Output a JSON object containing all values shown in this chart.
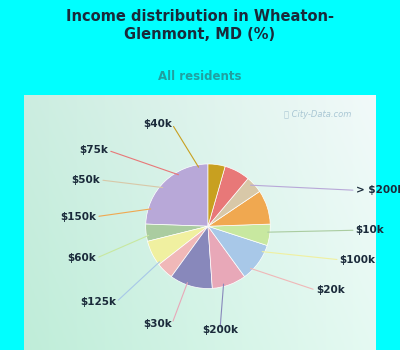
{
  "title": "Income distribution in Wheaton-\nGlenmont, MD (%)",
  "subtitle": "All residents",
  "watermark": "ⓘ City-Data.com",
  "labels": [
    "> $200k",
    "$10k",
    "$100k",
    "$20k",
    "$200k",
    "$30k",
    "$125k",
    "$60k",
    "$150k",
    "$50k",
    "$75k",
    "$40k"
  ],
  "values": [
    22,
    4,
    6,
    4,
    10,
    8,
    9,
    5,
    8,
    4,
    6,
    4
  ],
  "colors": [
    "#b8a8d8",
    "#aacca0",
    "#f0f0a0",
    "#f0b8b8",
    "#8888bb",
    "#e8a8b8",
    "#a8c8e8",
    "#c8e8a0",
    "#f0a850",
    "#d8c8a8",
    "#e87878",
    "#c8a020"
  ],
  "bg_top_color": "#e8f8f8",
  "bg_bottom_color": "#d0f0d8",
  "title_color": "#1a2a3a",
  "subtitle_color": "#20a0a0",
  "outer_bg": "#00ffff",
  "startangle": 90,
  "label_fontsize": 7.5,
  "label_color": "#1a2a3a"
}
